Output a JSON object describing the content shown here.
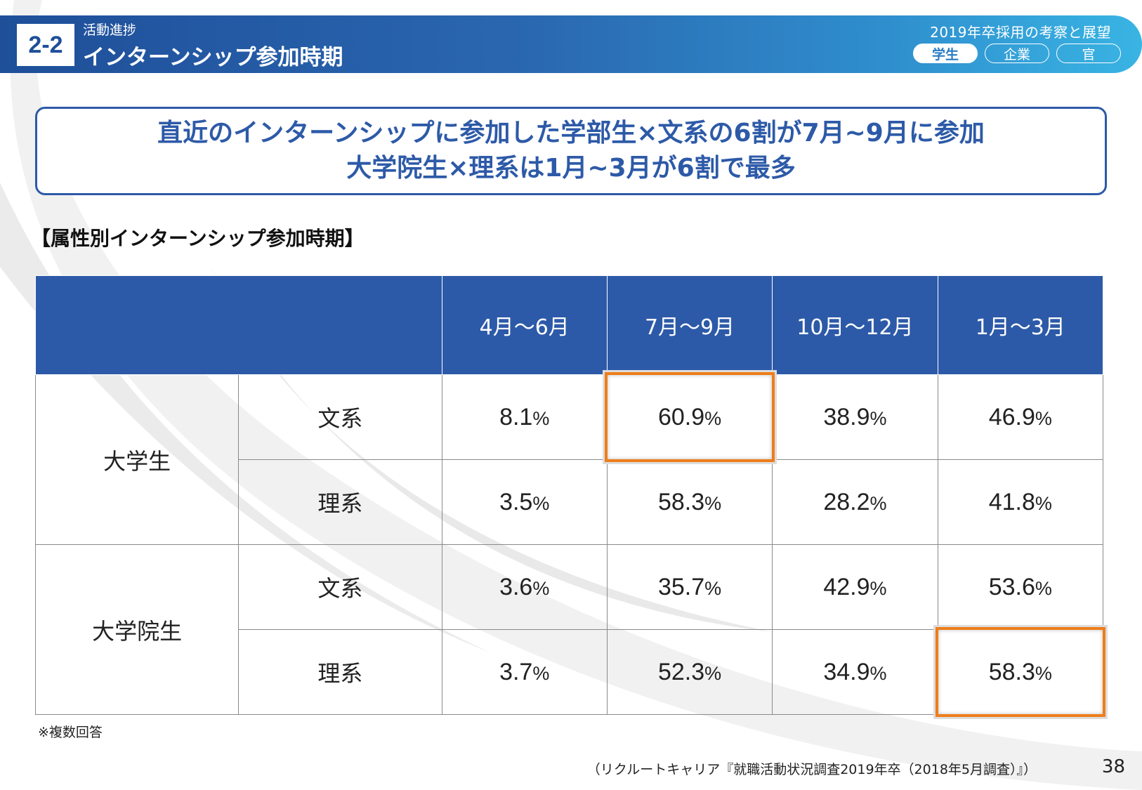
{
  "header": {
    "section_number": "2-2",
    "section_label": "活動進捗",
    "page_title": "インターンシップ参加時期",
    "report_title": "2019年卒採用の考察と展望",
    "tabs": [
      {
        "label": "学生",
        "active": true
      },
      {
        "label": "企業",
        "active": false
      },
      {
        "label": "官",
        "active": false
      }
    ]
  },
  "headline": {
    "line1": "直近のインターンシップに参加した学部生×文系の6割が7月~9月に参加",
    "line2": "大学院生×理系は1月~3月が6割で最多"
  },
  "table": {
    "caption": "【属性別インターンシップ参加時期】",
    "columns": [
      "4月～6月",
      "7月～9月",
      "10月～12月",
      "1月～3月"
    ],
    "groups": [
      {
        "label": "大学生",
        "rows": [
          {
            "label": "文系",
            "values": [
              "8.1",
              "60.9",
              "38.9",
              "46.9"
            ]
          },
          {
            "label": "理系",
            "values": [
              "3.5",
              "58.3",
              "28.2",
              "41.8"
            ]
          }
        ]
      },
      {
        "label": "大学院生",
        "rows": [
          {
            "label": "文系",
            "values": [
              "3.6",
              "35.7",
              "42.9",
              "53.6"
            ]
          },
          {
            "label": "理系",
            "values": [
              "3.7",
              "52.3",
              "34.9",
              "58.3"
            ]
          }
        ]
      }
    ],
    "percent_sign": "%"
  },
  "footnote": "※複数回答",
  "source": "（リクルートキャリア『就職活動状況調査2019年卒（2018年5月調査）』）",
  "page_number": "38",
  "colors": {
    "brand_blue": "#2d5aa8",
    "header_gradient_end": "#39b4e3",
    "highlight": "#ee7d1a"
  }
}
